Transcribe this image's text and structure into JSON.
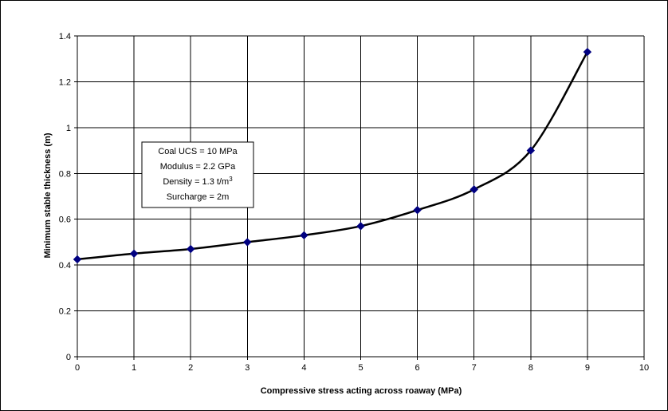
{
  "chart_data": {
    "type": "line",
    "title": "",
    "xlabel": "Compressive stress acting across roaway (MPa)",
    "ylabel": "Minimum stable thickness (m)",
    "xlim": [
      0,
      10
    ],
    "ylim": [
      0,
      1.4
    ],
    "x_ticks": [
      "0",
      "1",
      "2",
      "3",
      "4",
      "5",
      "6",
      "7",
      "8",
      "9",
      "10"
    ],
    "y_ticks": [
      "0",
      "0.2",
      "0.4",
      "0.6",
      "0.8",
      "1",
      "1.2",
      "1.4"
    ],
    "grid": true,
    "legend": "none",
    "series": [
      {
        "x": [
          0,
          1,
          2,
          3,
          4,
          5,
          6,
          7,
          8,
          9
        ],
        "y": [
          0.425,
          0.45,
          0.47,
          0.5,
          0.53,
          0.57,
          0.64,
          0.73,
          0.9,
          1.33
        ],
        "line_color": "#000000",
        "marker": "diamond",
        "marker_color": "#000080"
      }
    ],
    "annotation": {
      "lines": [
        {
          "text": "Coal UCS = 10 MPa",
          "sup": ""
        },
        {
          "text": "Modulus = 2.2 GPa",
          "sup": ""
        },
        {
          "text": "Density = 1.3 t/m",
          "sup": "3"
        },
        {
          "text": "Surcharge = 2m",
          "sup": ""
        }
      ]
    }
  }
}
